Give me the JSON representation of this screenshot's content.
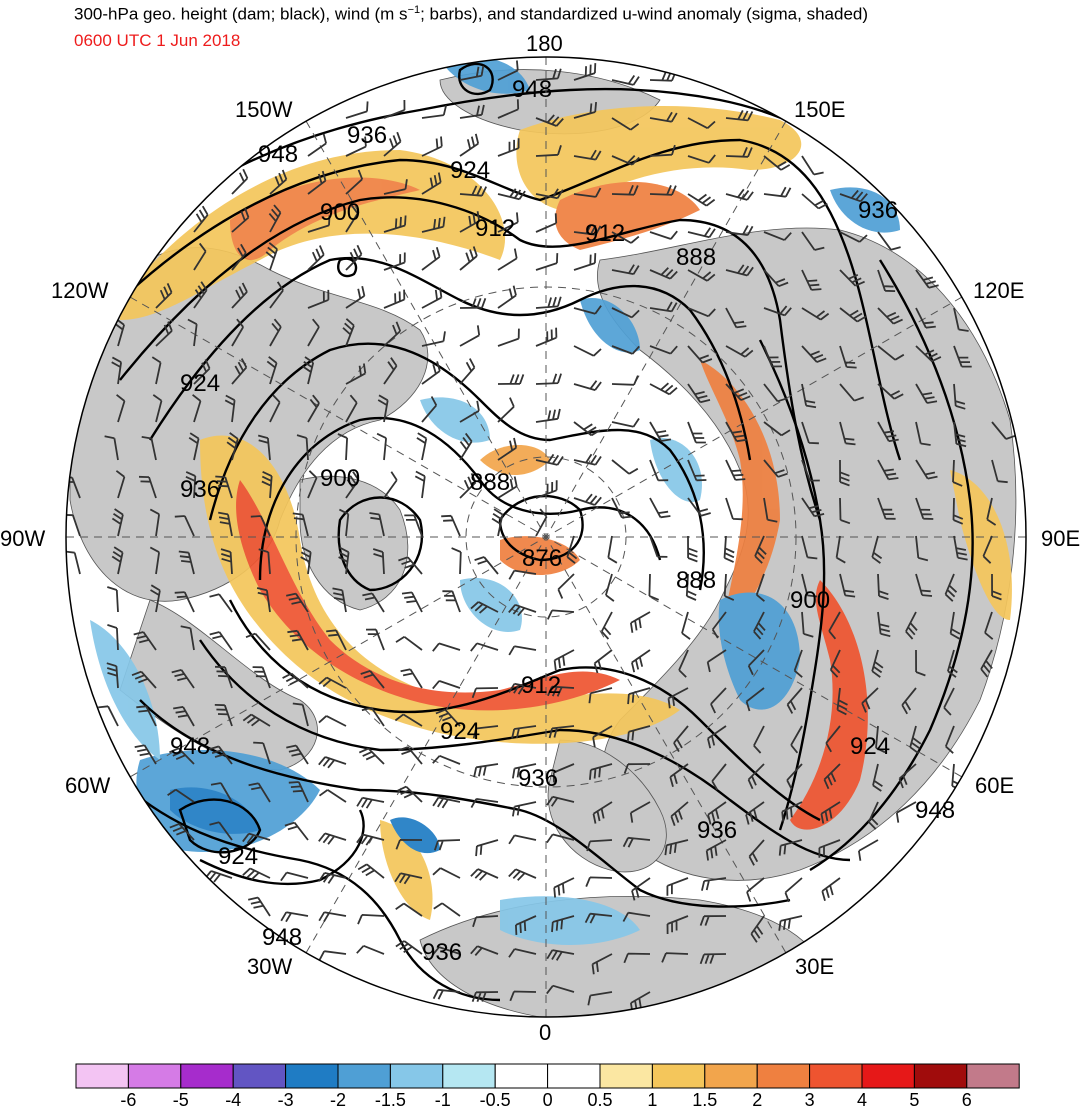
{
  "header": {
    "title_pre": "300-hPa geo. height (dam; black), wind (m s",
    "title_sup": "−1",
    "title_post": "; barbs), and standardized u-wind anomaly (sigma, shaded)",
    "datetime": "0600 UTC 1 Jun 2018",
    "datetime_color": "#ee1c1c"
  },
  "map": {
    "projection": "north-polar-stereographic",
    "longitude_labels": [
      "180",
      "150E",
      "120E",
      "90E",
      "60E",
      "30E",
      "0",
      "30W",
      "60W",
      "90W",
      "120W",
      "150W"
    ],
    "contour_labels": [
      "948",
      "936",
      "924",
      "912",
      "912",
      "900",
      "888",
      "936",
      "948",
      "924",
      "936",
      "900",
      "888",
      "876",
      "888",
      "900",
      "912",
      "924",
      "924",
      "948",
      "936",
      "936",
      "948",
      "924",
      "948",
      "936"
    ],
    "colors": {
      "land": "#c8c8c8",
      "contour": "#000000",
      "barb": "#333333"
    }
  },
  "colorbar": {
    "ticks": [
      "-6",
      "-5",
      "-4",
      "-3",
      "-2",
      "-1.5",
      "-1",
      "-0.5",
      "0",
      "0.5",
      "1",
      "1.5",
      "2",
      "3",
      "4",
      "5",
      "6"
    ],
    "colors": [
      "#f3c4f3",
      "#d57be6",
      "#a62ccc",
      "#6255c3",
      "#1f7cc4",
      "#4f9fd5",
      "#86c7e8",
      "#b5e7f2",
      "#ffffff",
      "#ffffff",
      "#fbe7a2",
      "#f4c65b",
      "#f2a54c",
      "#ef8040",
      "#ee5430",
      "#e61818",
      "#a00c0c",
      "#c27a8a"
    ]
  }
}
